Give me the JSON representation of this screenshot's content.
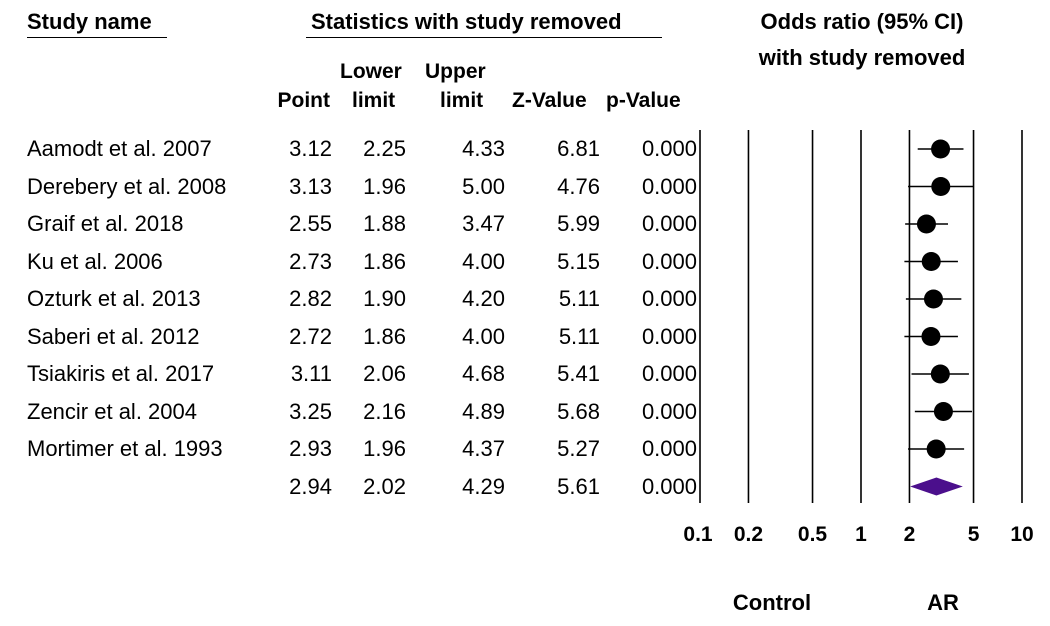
{
  "headers": {
    "study_name": "Study name",
    "stats_group": "Statistics with study removed",
    "plot_title_line1": "Odds ratio (95% CI)",
    "plot_title_line2": "with study removed",
    "columns": {
      "point": "Point",
      "lower_line1": "Lower",
      "lower_line2": "limit",
      "upper_line1": "Upper",
      "upper_line2": "limit",
      "zvalue": "Z-Value",
      "pvalue": "p-Value"
    }
  },
  "rows": [
    {
      "study": "Aamodt et al. 2007",
      "point": "3.12",
      "lower": "2.25",
      "upper": "4.33",
      "z": "6.81",
      "p": "0.000"
    },
    {
      "study": "Derebery et al. 2008",
      "point": "3.13",
      "lower": "1.96",
      "upper": "5.00",
      "z": "4.76",
      "p": "0.000"
    },
    {
      "study": "Graif et al. 2018",
      "point": "2.55",
      "lower": "1.88",
      "upper": "3.47",
      "z": "5.99",
      "p": "0.000"
    },
    {
      "study": "Ku et al. 2006",
      "point": "2.73",
      "lower": "1.86",
      "upper": "4.00",
      "z": "5.15",
      "p": "0.000"
    },
    {
      "study": "Ozturk et al. 2013",
      "point": "2.82",
      "lower": "1.90",
      "upper": "4.20",
      "z": "5.11",
      "p": "0.000"
    },
    {
      "study": "Saberi et al. 2012",
      "point": "2.72",
      "lower": "1.86",
      "upper": "4.00",
      "z": "5.11",
      "p": "0.000"
    },
    {
      "study": "Tsiakiris et al. 2017",
      "point": "3.11",
      "lower": "2.06",
      "upper": "4.68",
      "z": "5.41",
      "p": "0.000"
    },
    {
      "study": "Zencir et al. 2004",
      "point": "3.25",
      "lower": "2.16",
      "upper": "4.89",
      "z": "5.68",
      "p": "0.000"
    },
    {
      "study": "Mortimer et al. 1993",
      "point": "2.93",
      "lower": "1.96",
      "upper": "4.37",
      "z": "5.27",
      "p": "0.000"
    }
  ],
  "summary": {
    "study": "",
    "point": "2.94",
    "lower": "2.02",
    "upper": "4.29",
    "z": "5.61",
    "p": "0.000"
  },
  "chart_data": {
    "type": "forest",
    "scale": "log",
    "xlim": [
      0.1,
      10
    ],
    "ticks": [
      0.1,
      0.2,
      0.5,
      1,
      2,
      5,
      10
    ],
    "tick_labels": [
      "0.1",
      "0.2",
      "0.5",
      "1",
      "2",
      "5",
      "10"
    ],
    "xlabel_left": "Control",
    "xlabel_right": "AR",
    "studies": [
      {
        "point": 3.12,
        "lower": 2.25,
        "upper": 4.33
      },
      {
        "point": 3.13,
        "lower": 1.96,
        "upper": 5.0
      },
      {
        "point": 2.55,
        "lower": 1.88,
        "upper": 3.47
      },
      {
        "point": 2.73,
        "lower": 1.86,
        "upper": 4.0
      },
      {
        "point": 2.82,
        "lower": 1.9,
        "upper": 4.2
      },
      {
        "point": 2.72,
        "lower": 1.86,
        "upper": 4.0
      },
      {
        "point": 3.11,
        "lower": 2.06,
        "upper": 4.68
      },
      {
        "point": 3.25,
        "lower": 2.16,
        "upper": 4.89
      },
      {
        "point": 2.93,
        "lower": 1.96,
        "upper": 4.37
      }
    ],
    "summary": {
      "point": 2.94,
      "lower": 2.02,
      "upper": 4.29
    },
    "colors": {
      "marker": "#000000",
      "summary": "#4b0f8c",
      "lines": "#000000"
    }
  }
}
